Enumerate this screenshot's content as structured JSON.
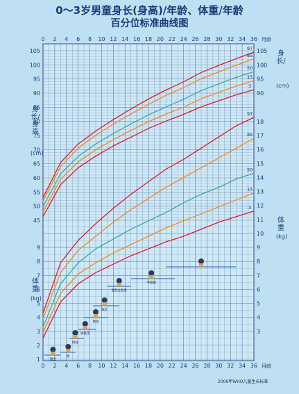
{
  "title_line1": "0～3岁男童身长(身高)/年龄、体重/年龄",
  "title_line2": "百分位标准曲线图",
  "x_axis_unit": "月龄",
  "left_length_label": "身长/身高",
  "left_length_unit": "(cm)",
  "right_length_label": "身长/",
  "right_length_unit": "(cm)",
  "left_weight_label": "体重",
  "left_weight_unit": "(kg)",
  "right_weight_label": "体重",
  "right_weight_unit": "(kg)",
  "source": "2006年WHO儿童生长标准",
  "milestones": [
    "独坐",
    "爬",
    "扶站",
    "扶着走",
    "独站",
    "独走",
    "坐起立起身",
    "手膝跑"
  ],
  "colors": {
    "background": "#bfe0f2",
    "grid": "#2a4a8a",
    "p3_p97": "#e01a2a",
    "p15_p85": "#f08a1a",
    "p50": "#3aaaa0"
  },
  "chart_data": {
    "type": "line",
    "x_ticks": [
      "0",
      "2",
      "4",
      "6",
      "8",
      "10",
      "12",
      "14",
      "16",
      "18",
      "20",
      "22",
      "24",
      "26",
      "28",
      "30",
      "32",
      "34",
      "36"
    ],
    "length_ticks": [
      "45",
      "50",
      "55",
      "60",
      "65",
      "70",
      "75",
      "80",
      "85",
      "90",
      "95",
      "100",
      "105"
    ],
    "length_right_ticks": [
      "90",
      "95",
      "100",
      "105"
    ],
    "weight_ticks": [
      "1",
      "2",
      "3",
      "4",
      "5",
      "6",
      "7",
      "8",
      "9",
      "10",
      "11",
      "12",
      "13",
      "14",
      "15",
      "16",
      "17",
      "18"
    ],
    "x": [
      0,
      3,
      6,
      9,
      12,
      15,
      18,
      21,
      24,
      27,
      30,
      33,
      36
    ],
    "xlim": [
      0,
      36
    ],
    "length_ylim": [
      45,
      105
    ],
    "weight_ylim": [
      1,
      18
    ],
    "length_series": [
      {
        "name": "97",
        "values": [
          53.0,
          65.4,
          72.0,
          76.6,
          80.6,
          84.4,
          87.9,
          91.1,
          94.0,
          97.3,
          99.8,
          102.2,
          104.5
        ]
      },
      {
        "name": "85",
        "values": [
          51.8,
          64.0,
          70.5,
          75.1,
          79.0,
          82.6,
          86.0,
          89.2,
          92.0,
          95.1,
          97.5,
          99.9,
          102.1
        ]
      },
      {
        "name": "50",
        "values": [
          49.9,
          61.4,
          67.6,
          72.0,
          75.7,
          79.1,
          82.3,
          85.1,
          87.8,
          90.9,
          93.3,
          95.6,
          97.6
        ]
      },
      {
        "name": "15",
        "values": [
          48.0,
          59.5,
          65.7,
          69.9,
          73.5,
          76.8,
          79.9,
          82.6,
          85.0,
          88.0,
          90.3,
          92.5,
          94.4
        ]
      },
      {
        "name": "3",
        "values": [
          46.3,
          57.6,
          63.6,
          67.7,
          71.3,
          74.4,
          77.5,
          80.1,
          82.5,
          85.1,
          87.3,
          89.4,
          91.2
        ]
      }
    ],
    "weight_series": [
      {
        "name": "97",
        "values": [
          4.3,
          7.9,
          9.5,
          10.7,
          11.8,
          12.8,
          13.7,
          14.6,
          15.3,
          16.1,
          16.9,
          17.7,
          18.3
        ]
      },
      {
        "name": "85",
        "values": [
          3.9,
          7.2,
          8.8,
          9.8,
          10.8,
          11.7,
          12.5,
          13.3,
          14.0,
          14.7,
          15.4,
          16.1,
          16.8
        ]
      },
      {
        "name": "50",
        "values": [
          3.3,
          6.4,
          7.9,
          8.9,
          9.6,
          10.3,
          10.9,
          11.5,
          12.2,
          12.8,
          13.3,
          13.9,
          14.3
        ]
      },
      {
        "name": "15",
        "values": [
          2.9,
          5.7,
          7.1,
          7.9,
          8.6,
          9.2,
          9.8,
          10.4,
          10.9,
          11.4,
          11.9,
          12.4,
          12.9
        ]
      },
      {
        "name": "3",
        "values": [
          2.5,
          5.1,
          6.4,
          7.2,
          7.8,
          8.4,
          8.9,
          9.4,
          9.8,
          10.3,
          10.8,
          11.2,
          11.6
        ]
      }
    ],
    "grid": true
  }
}
